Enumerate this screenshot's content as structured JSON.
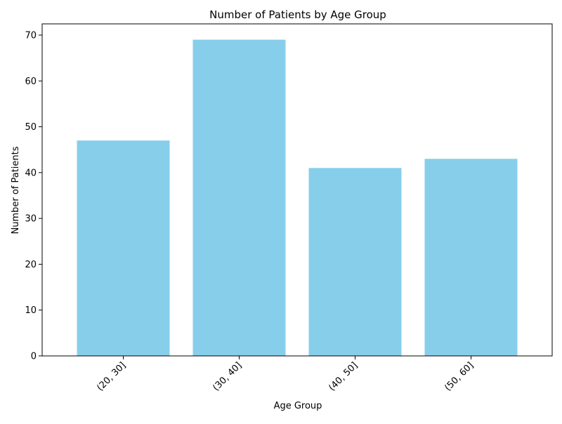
{
  "chart_data": {
    "type": "bar",
    "title": "Number of Patients by Age Group",
    "xlabel": "Age Group",
    "ylabel": "Number of Patients",
    "categories": [
      "(20, 30]",
      "(30, 40]",
      "(40, 50]",
      "(50, 60]"
    ],
    "values": [
      47,
      69,
      41,
      43
    ],
    "ylim": [
      0,
      72.45
    ],
    "yticks": [
      0,
      10,
      20,
      30,
      40,
      50,
      60,
      70
    ],
    "x_tick_rotation_deg": 45,
    "grid": false,
    "legend": "none",
    "bar_color": "#87CEEB"
  }
}
